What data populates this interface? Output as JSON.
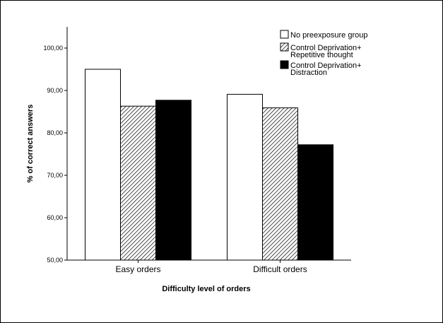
{
  "chart_data": {
    "type": "bar",
    "title": "",
    "xlabel": "Difficulty level of orders",
    "ylabel": "% of correct answers",
    "categories": [
      "Easy orders",
      "Difficult orders"
    ],
    "ylim": [
      50,
      105
    ],
    "yticks": [
      "50,00",
      "60,00",
      "70,00",
      "80,00",
      "90,00",
      "100,00"
    ],
    "grid": false,
    "legend_position": "top-right",
    "series": [
      {
        "name": "No preexposure group",
        "values": [
          95.0,
          89.1
        ],
        "fill": "white"
      },
      {
        "name": "Control Deprivation+ Repetitive thought",
        "legend_lines": [
          "Control Deprivation+",
          "Repetitive thought"
        ],
        "values": [
          86.3,
          85.9
        ],
        "fill": "hatched"
      },
      {
        "name": "Control Deprivation+ Distraction",
        "legend_lines": [
          "Control Deprivation+",
          "Distraction"
        ],
        "values": [
          87.7,
          77.2
        ],
        "fill": "black"
      }
    ]
  }
}
